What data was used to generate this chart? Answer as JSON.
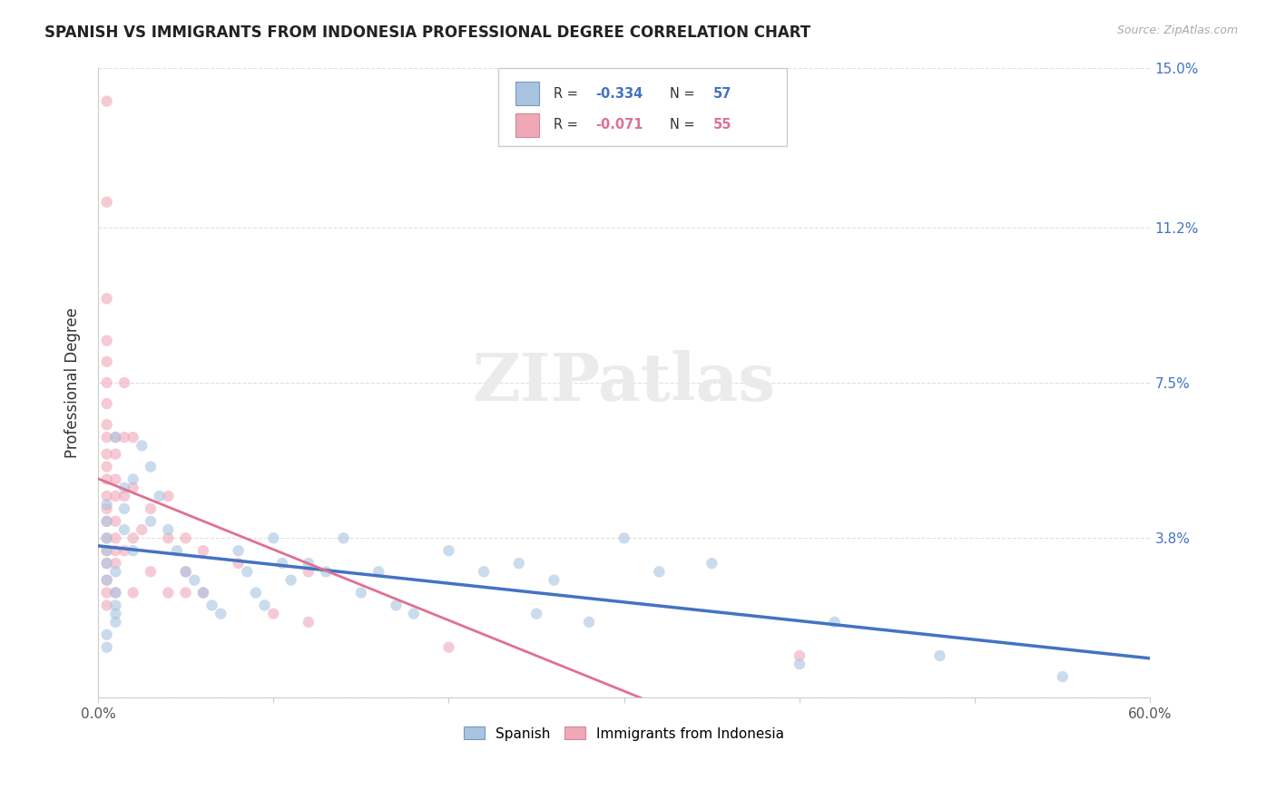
{
  "title": "SPANISH VS IMMIGRANTS FROM INDONESIA PROFESSIONAL DEGREE CORRELATION CHART",
  "source": "Source: ZipAtlas.com",
  "ylabel": "Professional Degree",
  "xlim": [
    0.0,
    0.6
  ],
  "ylim": [
    0.0,
    0.15
  ],
  "ytick_positions": [
    0.0,
    0.038,
    0.075,
    0.112,
    0.15
  ],
  "ytick_labels": [
    "",
    "3.8%",
    "7.5%",
    "11.2%",
    "15.0%"
  ],
  "grid_color": "#e0e0e0",
  "background_color": "#ffffff",
  "spanish_x": [
    0.01,
    0.005,
    0.005,
    0.005,
    0.005,
    0.005,
    0.01,
    0.005,
    0.01,
    0.01,
    0.01,
    0.01,
    0.005,
    0.005,
    0.015,
    0.015,
    0.015,
    0.02,
    0.02,
    0.025,
    0.03,
    0.03,
    0.035,
    0.04,
    0.045,
    0.05,
    0.055,
    0.06,
    0.065,
    0.07,
    0.08,
    0.085,
    0.09,
    0.095,
    0.1,
    0.105,
    0.11,
    0.12,
    0.13,
    0.14,
    0.15,
    0.16,
    0.17,
    0.18,
    0.2,
    0.22,
    0.24,
    0.25,
    0.26,
    0.28,
    0.3,
    0.32,
    0.35,
    0.4,
    0.42,
    0.48,
    0.55
  ],
  "spanish_y": [
    0.062,
    0.046,
    0.042,
    0.038,
    0.035,
    0.032,
    0.03,
    0.028,
    0.025,
    0.022,
    0.02,
    0.018,
    0.015,
    0.012,
    0.05,
    0.045,
    0.04,
    0.052,
    0.035,
    0.06,
    0.055,
    0.042,
    0.048,
    0.04,
    0.035,
    0.03,
    0.028,
    0.025,
    0.022,
    0.02,
    0.035,
    0.03,
    0.025,
    0.022,
    0.038,
    0.032,
    0.028,
    0.032,
    0.03,
    0.038,
    0.025,
    0.03,
    0.022,
    0.02,
    0.035,
    0.03,
    0.032,
    0.02,
    0.028,
    0.018,
    0.038,
    0.03,
    0.032,
    0.008,
    0.018,
    0.01,
    0.005
  ],
  "indonesia_x": [
    0.005,
    0.005,
    0.005,
    0.005,
    0.005,
    0.005,
    0.005,
    0.005,
    0.005,
    0.005,
    0.005,
    0.005,
    0.005,
    0.005,
    0.005,
    0.005,
    0.005,
    0.005,
    0.005,
    0.005,
    0.005,
    0.01,
    0.01,
    0.01,
    0.01,
    0.01,
    0.01,
    0.01,
    0.01,
    0.01,
    0.015,
    0.015,
    0.015,
    0.015,
    0.02,
    0.02,
    0.02,
    0.02,
    0.025,
    0.03,
    0.03,
    0.04,
    0.04,
    0.04,
    0.05,
    0.05,
    0.05,
    0.06,
    0.06,
    0.08,
    0.1,
    0.12,
    0.12,
    0.2,
    0.4
  ],
  "indonesia_y": [
    0.142,
    0.118,
    0.095,
    0.085,
    0.08,
    0.075,
    0.07,
    0.065,
    0.062,
    0.058,
    0.055,
    0.052,
    0.048,
    0.045,
    0.042,
    0.038,
    0.035,
    0.032,
    0.028,
    0.025,
    0.022,
    0.062,
    0.058,
    0.052,
    0.048,
    0.042,
    0.038,
    0.035,
    0.032,
    0.025,
    0.075,
    0.062,
    0.048,
    0.035,
    0.062,
    0.05,
    0.038,
    0.025,
    0.04,
    0.045,
    0.03,
    0.048,
    0.038,
    0.025,
    0.038,
    0.03,
    0.025,
    0.035,
    0.025,
    0.032,
    0.02,
    0.03,
    0.018,
    0.012,
    0.01
  ],
  "spanish_color": "#a8c4e0",
  "indonesia_color": "#f0a8b8",
  "spanish_line_color": "#4472c4",
  "indonesia_line_color": "#e07090",
  "marker_size": 80,
  "marker_alpha": 0.6,
  "spanish_R": "-0.334",
  "spanish_N": "57",
  "indonesia_R": "-0.071",
  "indonesia_N": "55"
}
